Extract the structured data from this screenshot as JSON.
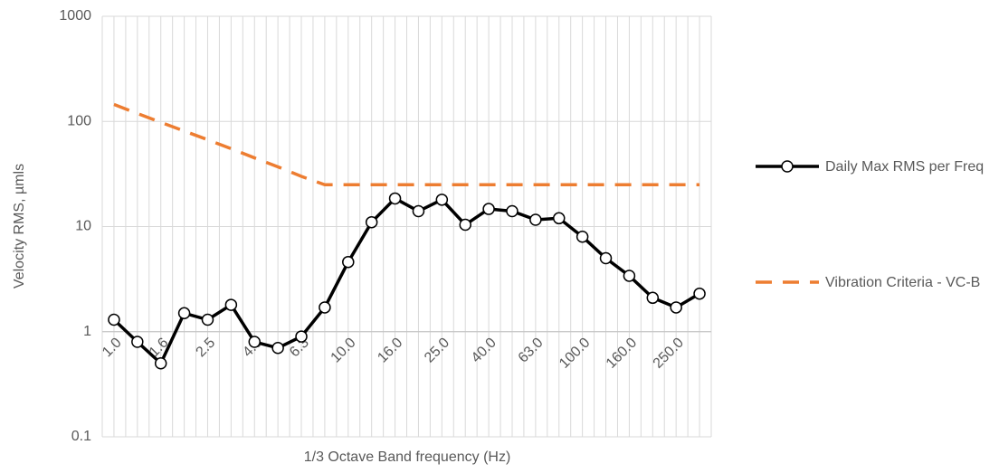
{
  "chart_data": {
    "type": "line",
    "y_label": "Velocity RMS, µmls",
    "x_label": "1/3 Octave Band frequency (Hz)",
    "categories": [
      "1.0",
      null,
      "1.6",
      null,
      "2.5",
      null,
      "4.0",
      null,
      "6.3",
      null,
      "10.0",
      null,
      "16.0",
      null,
      "25.0",
      null,
      "40.0",
      null,
      "63.0",
      null,
      "100.0",
      null,
      "160.0",
      null,
      "250.0",
      null
    ],
    "series": [
      {
        "name": "Daily Max RMS per Freq",
        "color": "#000000",
        "style": "solid",
        "markers": true,
        "values": [
          1.3,
          0.8,
          0.5,
          1.5,
          1.3,
          1.8,
          0.8,
          0.7,
          0.9,
          1.7,
          4.6,
          11,
          18.5,
          14,
          18,
          10.4,
          14.7,
          14,
          11.6,
          12,
          8,
          5,
          3.4,
          2.1,
          1.7,
          2.3
        ]
      },
      {
        "name": "Vibration Criteria - VC-B",
        "color": "#ed7d31",
        "style": "dashed",
        "markers": false,
        "values": [
          145,
          119,
          98,
          81,
          67,
          55,
          45,
          37,
          30,
          25,
          25,
          25,
          25,
          25,
          25,
          25,
          25,
          25,
          25,
          25,
          25,
          25,
          25,
          25,
          25,
          25
        ]
      }
    ],
    "ylim": [
      0.1,
      1000
    ],
    "yticks": [
      0.1,
      1,
      10,
      100,
      1000
    ],
    "log_y": true,
    "grid": true,
    "x_axis_crossing": 1,
    "legend": "right"
  }
}
